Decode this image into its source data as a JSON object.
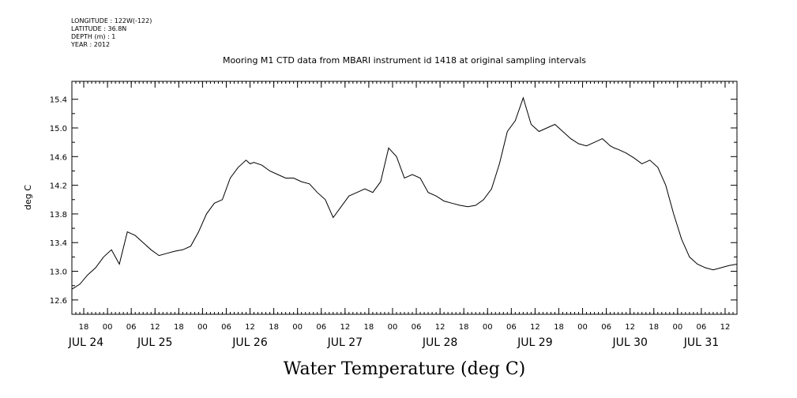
{
  "header": {
    "meta_lines": [
      "LONGITUDE : 122W(-122)",
      "LATITUDE : 36.8N",
      "DEPTH (m) : 1",
      "YEAR : 2012"
    ]
  },
  "chart_data": {
    "type": "line",
    "title": "Mooring M1 CTD data from MBARI instrument id 1418 at original sampling intervals",
    "xlabel": "Water Temperature (deg C)",
    "ylabel": "deg C",
    "x_unit": "2012-07-24 hours offset",
    "xlim": [
      "2012-07-24 15:00",
      "2012-07-31 15:00"
    ],
    "ylim": [
      12.4,
      15.65
    ],
    "y_ticks": [
      "12.6",
      "13.0",
      "13.4",
      "13.8",
      "14.2",
      "14.6",
      "15.0",
      "15.4"
    ],
    "x_hour_ticks": [
      "18",
      "00",
      "06",
      "12",
      "18",
      "00",
      "06",
      "12",
      "18",
      "00",
      "06",
      "12",
      "18",
      "00",
      "06",
      "12",
      "18",
      "00",
      "06",
      "12",
      "18",
      "00",
      "06",
      "12",
      "18",
      "00",
      "06",
      "12",
      "18",
      "00",
      "06",
      "12"
    ],
    "x_day_labels": [
      "JUL 24",
      "JUL 25",
      "JUL 26",
      "JUL 27",
      "JUL 28",
      "JUL 29",
      "JUL 30",
      "JUL 31"
    ],
    "grid": false,
    "series": [
      {
        "x": [
          "2012-07-24 15:00",
          "2012-07-24 17:00",
          "2012-07-24 19:00",
          "2012-07-24 21:00",
          "2012-07-24 23:00",
          "2012-07-25 01:00",
          "2012-07-25 03:00",
          "2012-07-25 05:00",
          "2012-07-25 07:00",
          "2012-07-25 09:00",
          "2012-07-25 11:00",
          "2012-07-25 13:00",
          "2012-07-25 15:00",
          "2012-07-25 17:00",
          "2012-07-25 19:00",
          "2012-07-25 21:00",
          "2012-07-25 23:00",
          "2012-07-26 01:00",
          "2012-07-26 03:00",
          "2012-07-26 05:00",
          "2012-07-26 07:00",
          "2012-07-26 09:00",
          "2012-07-26 11:00",
          "2012-07-26 12:00",
          "2012-07-26 13:00",
          "2012-07-26 15:00",
          "2012-07-26 17:00",
          "2012-07-26 19:00",
          "2012-07-26 21:00",
          "2012-07-26 23:00",
          "2012-07-27 01:00",
          "2012-07-27 03:00",
          "2012-07-27 05:00",
          "2012-07-27 07:00",
          "2012-07-27 09:00",
          "2012-07-27 11:00",
          "2012-07-27 13:00",
          "2012-07-27 15:00",
          "2012-07-27 17:00",
          "2012-07-27 19:00",
          "2012-07-27 21:00",
          "2012-07-27 23:00",
          "2012-07-28 01:00",
          "2012-07-28 03:00",
          "2012-07-28 05:00",
          "2012-07-28 07:00",
          "2012-07-28 09:00",
          "2012-07-28 11:00",
          "2012-07-28 13:00",
          "2012-07-28 15:00",
          "2012-07-28 17:00",
          "2012-07-28 19:00",
          "2012-07-28 21:00",
          "2012-07-28 23:00",
          "2012-07-29 01:00",
          "2012-07-29 03:00",
          "2012-07-29 05:00",
          "2012-07-29 07:00",
          "2012-07-29 09:00",
          "2012-07-29 11:00",
          "2012-07-29 13:00",
          "2012-07-29 15:00",
          "2012-07-29 17:00",
          "2012-07-29 19:00",
          "2012-07-29 21:00",
          "2012-07-29 23:00",
          "2012-07-30 01:00",
          "2012-07-30 03:00",
          "2012-07-30 05:00",
          "2012-07-30 07:00",
          "2012-07-30 08:00",
          "2012-07-30 09:00",
          "2012-07-30 11:00",
          "2012-07-30 13:00",
          "2012-07-30 15:00",
          "2012-07-30 17:00",
          "2012-07-30 19:00",
          "2012-07-30 21:00",
          "2012-07-30 23:00",
          "2012-07-31 01:00",
          "2012-07-31 03:00",
          "2012-07-31 05:00",
          "2012-07-31 07:00",
          "2012-07-31 09:00",
          "2012-07-31 11:00",
          "2012-07-31 13:00",
          "2012-07-31 15:00"
        ],
        "values": [
          12.75,
          12.82,
          12.95,
          13.05,
          13.2,
          13.3,
          13.1,
          13.55,
          13.5,
          13.4,
          13.3,
          13.22,
          13.25,
          13.28,
          13.3,
          13.35,
          13.55,
          13.8,
          13.95,
          14.0,
          14.3,
          14.45,
          14.55,
          14.5,
          14.52,
          14.48,
          14.4,
          14.35,
          14.3,
          14.3,
          14.25,
          14.22,
          14.1,
          14.0,
          13.75,
          13.9,
          14.05,
          14.1,
          14.15,
          14.1,
          14.25,
          14.72,
          14.6,
          14.3,
          14.35,
          14.3,
          14.1,
          14.05,
          13.98,
          13.95,
          13.92,
          13.9,
          13.92,
          14.0,
          14.15,
          14.5,
          14.95,
          15.1,
          15.42,
          15.05,
          14.95,
          15.0,
          15.05,
          14.95,
          14.85,
          14.78,
          14.75,
          14.8,
          14.85,
          14.75,
          14.72,
          14.7,
          14.65,
          14.58,
          14.5,
          14.55,
          14.45,
          14.2,
          13.8,
          13.45,
          13.2,
          13.1,
          13.05,
          13.02,
          13.05,
          13.08,
          13.1
        ]
      }
    ]
  }
}
